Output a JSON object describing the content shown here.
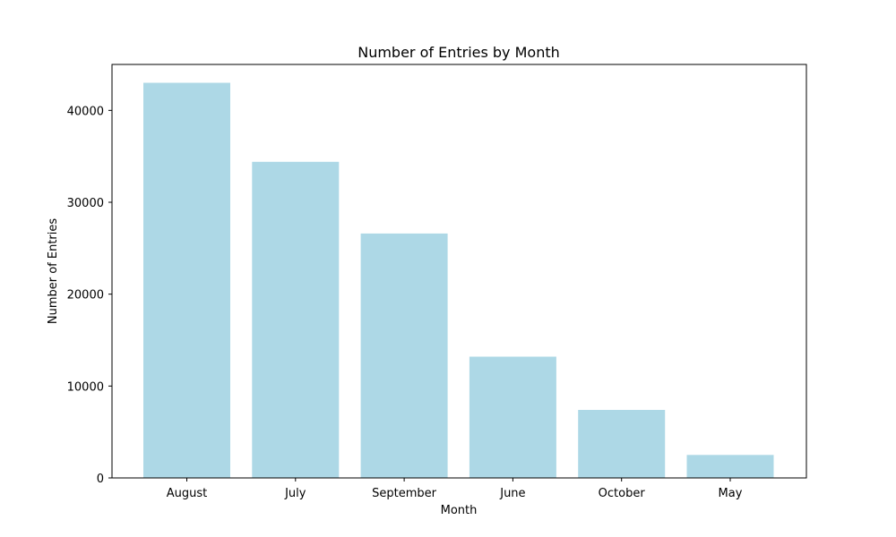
{
  "chart_data": {
    "type": "bar",
    "title": "Number of Entries by Month",
    "xlabel": "Month",
    "ylabel": "Number of Entries",
    "categories": [
      "August",
      "July",
      "September",
      "June",
      "October",
      "May"
    ],
    "values": [
      43000,
      34400,
      26600,
      13200,
      7400,
      2500
    ],
    "ylim": [
      0,
      45000
    ],
    "yticks": [
      0,
      10000,
      20000,
      30000,
      40000
    ],
    "bar_color": "#add8e6",
    "grid": false,
    "legend": "none"
  }
}
